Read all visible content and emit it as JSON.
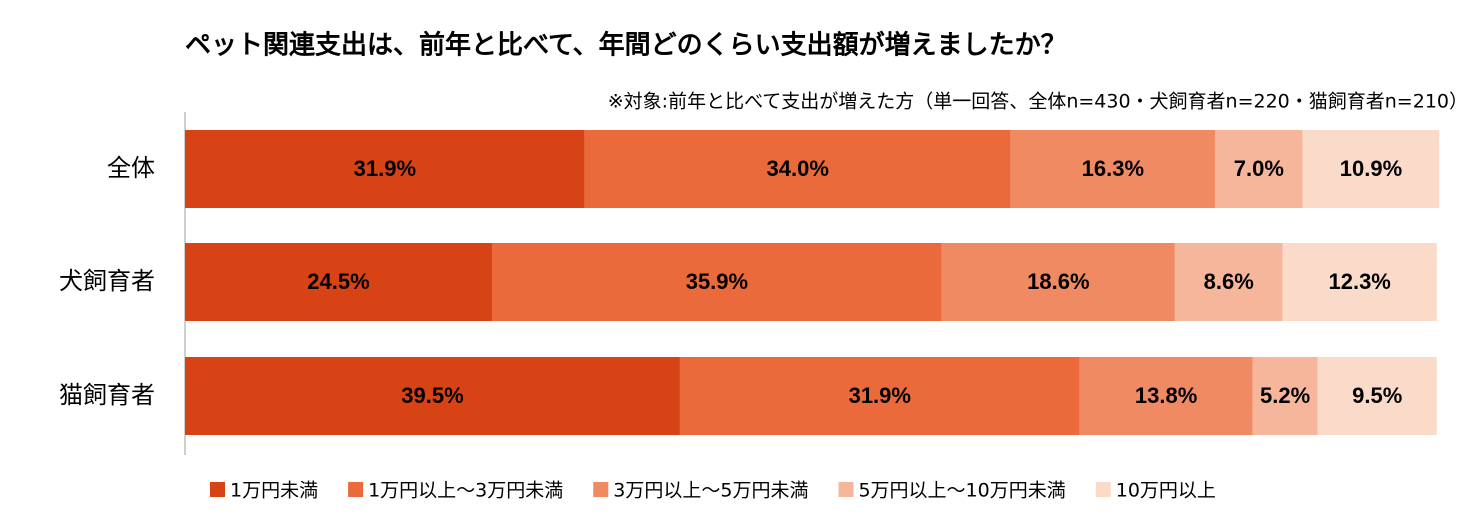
{
  "chart_data": {
    "type": "stacked-bar-horizontal",
    "title": "ペット関連支出は、前年と比べて、年間どのくらい支出額が増えましたか？",
    "subtitle": "※対象:前年と比べて支出が増えた方（単一回答、全体n=430・犬飼育者n=220・猫飼育者n=210）",
    "categories": [
      "全体",
      "犬飼育者",
      "猫飼育者"
    ],
    "xlim": [
      0,
      100
    ],
    "series": [
      {
        "name": "1万円未満",
        "color": "#d84315",
        "values": [
          31.9,
          24.5,
          39.5
        ],
        "value_labels": [
          "31.9%",
          "24.5%",
          "39.5%"
        ]
      },
      {
        "name": "1万円以上～3万円未満",
        "color": "#ea6a3b",
        "values": [
          34.0,
          35.9,
          31.9
        ],
        "value_labels": [
          "34.0%",
          "35.9%",
          "31.9%"
        ]
      },
      {
        "name": "3万円以上～5万円未満",
        "color": "#ef8a62",
        "values": [
          16.3,
          18.6,
          13.8
        ],
        "value_labels": [
          "16.3%",
          "18.6%",
          "13.8%"
        ]
      },
      {
        "name": "5万円以上～10万円未満",
        "color": "#f5b69c",
        "values": [
          7.0,
          8.6,
          5.2
        ],
        "value_labels": [
          "7.0%",
          "8.6%",
          "5.2%"
        ]
      },
      {
        "name": "10万円以上",
        "color": "#fadbc9",
        "values": [
          10.9,
          12.3,
          9.5
        ],
        "value_labels": [
          "10.9%",
          "12.3%",
          "9.5%"
        ]
      }
    ]
  }
}
